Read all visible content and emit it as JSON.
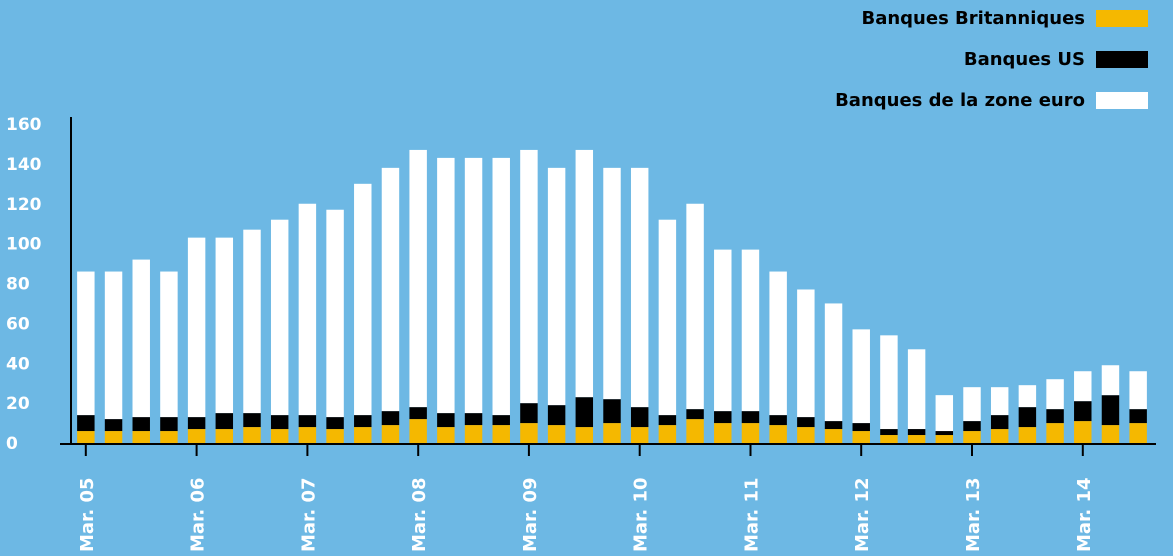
{
  "chart_data": {
    "type": "bar",
    "stacked": true,
    "title": "",
    "xlabel": "",
    "ylabel": "",
    "ylim": [
      0,
      160
    ],
    "yticks": [
      0,
      20,
      40,
      60,
      80,
      100,
      120,
      140,
      160
    ],
    "grid": false,
    "legend_position": "top-right",
    "background_color": "#6db8e4",
    "x_tick_labels": [
      {
        "index": 0,
        "label": "Mar. 05"
      },
      {
        "index": 4,
        "label": "Mar. 06"
      },
      {
        "index": 8,
        "label": "Mar. 07"
      },
      {
        "index": 12,
        "label": "Mar. 08"
      },
      {
        "index": 16,
        "label": "Mar. 09"
      },
      {
        "index": 20,
        "label": "Mar. 10"
      },
      {
        "index": 24,
        "label": "Mar. 11"
      },
      {
        "index": 28,
        "label": "Mar. 12"
      },
      {
        "index": 32,
        "label": "Mar. 13"
      },
      {
        "index": 36,
        "label": "Mar. 14"
      }
    ],
    "series": [
      {
        "name": "Banques Britanniques",
        "color": "#f5b800",
        "values": [
          6,
          6,
          6,
          6,
          7,
          7,
          8,
          7,
          8,
          7,
          8,
          9,
          12,
          8,
          9,
          9,
          10,
          9,
          8,
          10,
          8,
          9,
          12,
          10,
          10,
          9,
          8,
          7,
          6,
          4,
          4,
          4,
          6,
          7,
          8,
          10,
          11,
          9,
          10
        ]
      },
      {
        "name": "Banques US",
        "color": "#000000",
        "values": [
          8,
          6,
          7,
          7,
          6,
          8,
          7,
          7,
          6,
          6,
          6,
          7,
          6,
          7,
          6,
          5,
          10,
          10,
          15,
          12,
          10,
          5,
          5,
          6,
          6,
          5,
          5,
          4,
          4,
          3,
          3,
          2,
          5,
          7,
          10,
          7,
          10,
          15,
          7
        ]
      },
      {
        "name": "Banques de la zone euro",
        "color": "#ffffff",
        "values": [
          72,
          74,
          79,
          73,
          90,
          88,
          92,
          98,
          106,
          104,
          116,
          122,
          129,
          128,
          128,
          129,
          127,
          119,
          124,
          116,
          120,
          98,
          103,
          81,
          81,
          72,
          64,
          59,
          47,
          47,
          40,
          18,
          17,
          14,
          11,
          15,
          15,
          15,
          19
        ]
      }
    ]
  }
}
